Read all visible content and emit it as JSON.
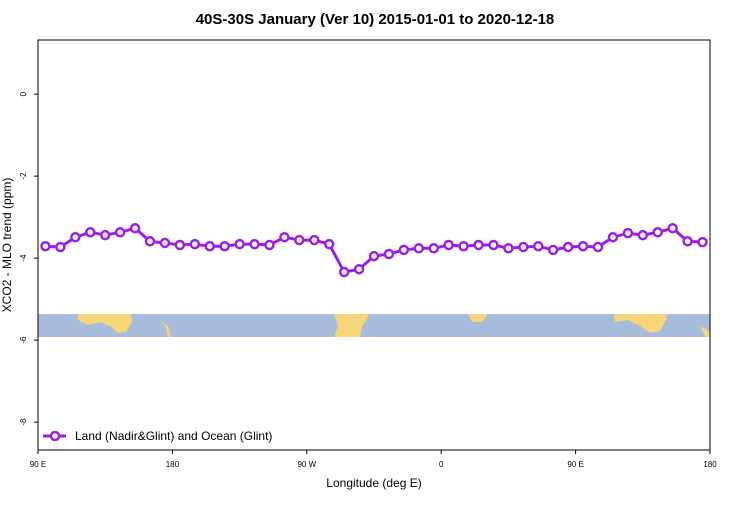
{
  "chart_data": {
    "type": "line",
    "title": "40S-30S January (Ver 10)   2015-01-01 to 2020-12-18",
    "x_label": "Longitude (deg E)",
    "y_label": "XCO2 - MLO trend (ppm)",
    "x": [
      95,
      105,
      115,
      125,
      135,
      145,
      155,
      165,
      175,
      185,
      195,
      205,
      215,
      225,
      235,
      245,
      255,
      265,
      275,
      285,
      295,
      305,
      315,
      325,
      335,
      345,
      355,
      365,
      375,
      385,
      395,
      405,
      415,
      425,
      435,
      445,
      455,
      465,
      475,
      485,
      495,
      505,
      515,
      525,
      535
    ],
    "series": [
      {
        "name": "Land (Nadir&Glint) and Ocean (Glint)",
        "color": "#9b1fe8",
        "values": [
          -3.71,
          -3.73,
          -3.49,
          -3.37,
          -3.44,
          -3.37,
          -3.27,
          -3.59,
          -3.63,
          -3.68,
          -3.66,
          -3.71,
          -3.71,
          -3.66,
          -3.66,
          -3.68,
          -3.49,
          -3.56,
          -3.56,
          -3.66,
          -4.34,
          -4.27,
          -3.95,
          -3.9,
          -3.8,
          -3.76,
          -3.76,
          -3.68,
          -3.71,
          -3.68,
          -3.68,
          -3.76,
          -3.73,
          -3.71,
          -3.8,
          -3.73,
          -3.71,
          -3.73,
          -3.49,
          -3.39,
          -3.44,
          -3.37,
          -3.27,
          -3.59,
          -3.61
        ]
      }
    ],
    "xlim": [
      90,
      540
    ],
    "xticks": [
      {
        "value": 90,
        "label": "90 E"
      },
      180,
      {
        "value": 270,
        "label": "90 W"
      },
      {
        "value": 360,
        "label": "0"
      },
      {
        "value": 450,
        "label": "90 E"
      },
      {
        "value": 540,
        "label": "180"
      }
    ],
    "ylim": [
      -8.68,
      1.32
    ],
    "yticks": [
      0,
      -2,
      -4,
      -6,
      -8
    ],
    "legend": "bottom-left"
  }
}
